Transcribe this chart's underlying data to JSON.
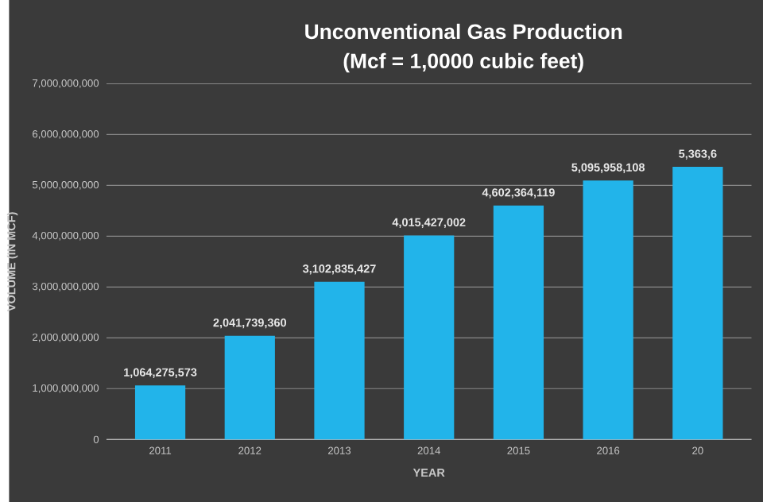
{
  "chart_data": {
    "type": "bar",
    "title": "Unconventional Gas Production",
    "subtitle": "(Mcf = 1,0000 cubic feet)",
    "xlabel": "YEAR",
    "ylabel": "VOLUME (IN MCF)",
    "categories": [
      "2011",
      "2012",
      "2013",
      "2014",
      "2015",
      "2016",
      "20"
    ],
    "values": [
      1064275573,
      2041739360,
      3102835427,
      4015427002,
      4602364119,
      5095958108,
      5363600000
    ],
    "value_labels": [
      "1,064,275,573",
      "2,041,739,360",
      "3,102,835,427",
      "4,015,427,002",
      "4,602,364,119",
      "5,095,958,108",
      "5,363,6"
    ],
    "color": "#22b4ea",
    "ylim": [
      0,
      7000000000
    ],
    "yticks": [
      {
        "value": 0,
        "label": "0"
      },
      {
        "value": 1000000000,
        "label": "1,000,000,000"
      },
      {
        "value": 2000000000,
        "label": "2,000,000,000"
      },
      {
        "value": 3000000000,
        "label": "3,000,000,000"
      },
      {
        "value": 4000000000,
        "label": "4,000,000,000"
      },
      {
        "value": 5000000000,
        "label": "5,000,000,000"
      },
      {
        "value": 6000000000,
        "label": "6,000,000,000"
      },
      {
        "value": 7000000000,
        "label": "7,000,000,000"
      }
    ],
    "grid": "y"
  }
}
